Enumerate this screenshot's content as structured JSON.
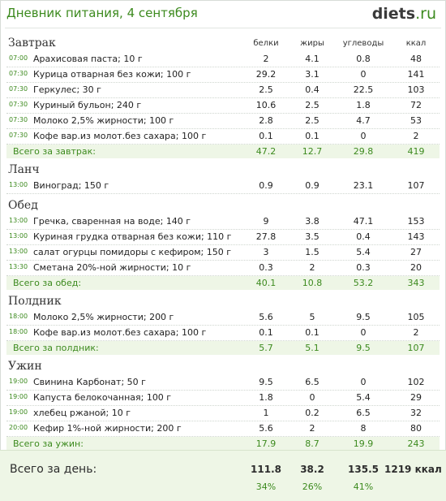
{
  "header": {
    "title": "Дневник питания, 4 сентября",
    "logo_main": "diets",
    "logo_tld": ".ru"
  },
  "columns": [
    "белки",
    "жиры",
    "углеводы",
    "ккал"
  ],
  "meals": [
    {
      "title": "Завтрак",
      "items": [
        {
          "time": "07:00",
          "name": "Арахисовая паста; 10 г",
          "p": "2",
          "f": "4.1",
          "c": "0.8",
          "k": "48"
        },
        {
          "time": "07:30",
          "name": "Курица отварная без кожи; 100 г",
          "p": "29.2",
          "f": "3.1",
          "c": "0",
          "k": "141"
        },
        {
          "time": "07:30",
          "name": "Геркулес; 30 г",
          "p": "2.5",
          "f": "0.4",
          "c": "22.5",
          "k": "103"
        },
        {
          "time": "07:30",
          "name": "Куриный бульон; 240 г",
          "p": "10.6",
          "f": "2.5",
          "c": "1.8",
          "k": "72"
        },
        {
          "time": "07:30",
          "name": "Молоко 2,5% жирности; 100 г",
          "p": "2.8",
          "f": "2.5",
          "c": "4.7",
          "k": "53"
        },
        {
          "time": "07:30",
          "name": "Кофе вар.из молот.без сахара; 100 г",
          "p": "0.1",
          "f": "0.1",
          "c": "0",
          "k": "2"
        }
      ],
      "total": {
        "label": "Всего за завтрак:",
        "p": "47.2",
        "f": "12.7",
        "c": "29.8",
        "k": "419"
      }
    },
    {
      "title": "Ланч",
      "items": [
        {
          "time": "13:00",
          "name": "Виноград; 150 г",
          "p": "0.9",
          "f": "0.9",
          "c": "23.1",
          "k": "107"
        }
      ]
    },
    {
      "title": "Обед",
      "items": [
        {
          "time": "13:00",
          "name": "Гречка, сваренная на воде; 140 г",
          "p": "9",
          "f": "3.8",
          "c": "47.1",
          "k": "153"
        },
        {
          "time": "13:00",
          "name": "Куриная грудка отварная без кожи; 110 г",
          "p": "27.8",
          "f": "3.5",
          "c": "0.4",
          "k": "143"
        },
        {
          "time": "13:00",
          "name": "салат огурцы помидоры с кефиром; 150 г",
          "p": "3",
          "f": "1.5",
          "c": "5.4",
          "k": "27"
        },
        {
          "time": "13:30",
          "name": "Сметана 20%-ной жирности; 10 г",
          "p": "0.3",
          "f": "2",
          "c": "0.3",
          "k": "20"
        }
      ],
      "total": {
        "label": "Всего за обед:",
        "p": "40.1",
        "f": "10.8",
        "c": "53.2",
        "k": "343"
      }
    },
    {
      "title": "Полдник",
      "items": [
        {
          "time": "18:00",
          "name": "Молоко 2,5% жирности; 200 г",
          "p": "5.6",
          "f": "5",
          "c": "9.5",
          "k": "105"
        },
        {
          "time": "18:00",
          "name": "Кофе вар.из молот.без сахара; 100 г",
          "p": "0.1",
          "f": "0.1",
          "c": "0",
          "k": "2"
        }
      ],
      "total": {
        "label": "Всего за полдник:",
        "p": "5.7",
        "f": "5.1",
        "c": "9.5",
        "k": "107"
      }
    },
    {
      "title": "Ужин",
      "items": [
        {
          "time": "19:00",
          "name": "Свинина Карбонат; 50 г",
          "p": "9.5",
          "f": "6.5",
          "c": "0",
          "k": "102"
        },
        {
          "time": "19:00",
          "name": "Капуста белокочанная; 100 г",
          "p": "1.8",
          "f": "0",
          "c": "5.4",
          "k": "29"
        },
        {
          "time": "19:00",
          "name": "хлебец ржаной; 10 г",
          "p": "1",
          "f": "0.2",
          "c": "6.5",
          "k": "32"
        },
        {
          "time": "20:00",
          "name": "Кефир 1%-ной жирности; 200 г",
          "p": "5.6",
          "f": "2",
          "c": "8",
          "k": "80"
        }
      ],
      "total": {
        "label": "Всего за ужин:",
        "p": "17.9",
        "f": "8.7",
        "c": "19.9",
        "k": "243"
      }
    }
  ],
  "day": {
    "label": "Всего за день:",
    "p": "111.8",
    "f": "38.2",
    "c": "135.5",
    "k": "1219 ккал",
    "pp": "34%",
    "fp": "26%",
    "cp": "41%"
  }
}
